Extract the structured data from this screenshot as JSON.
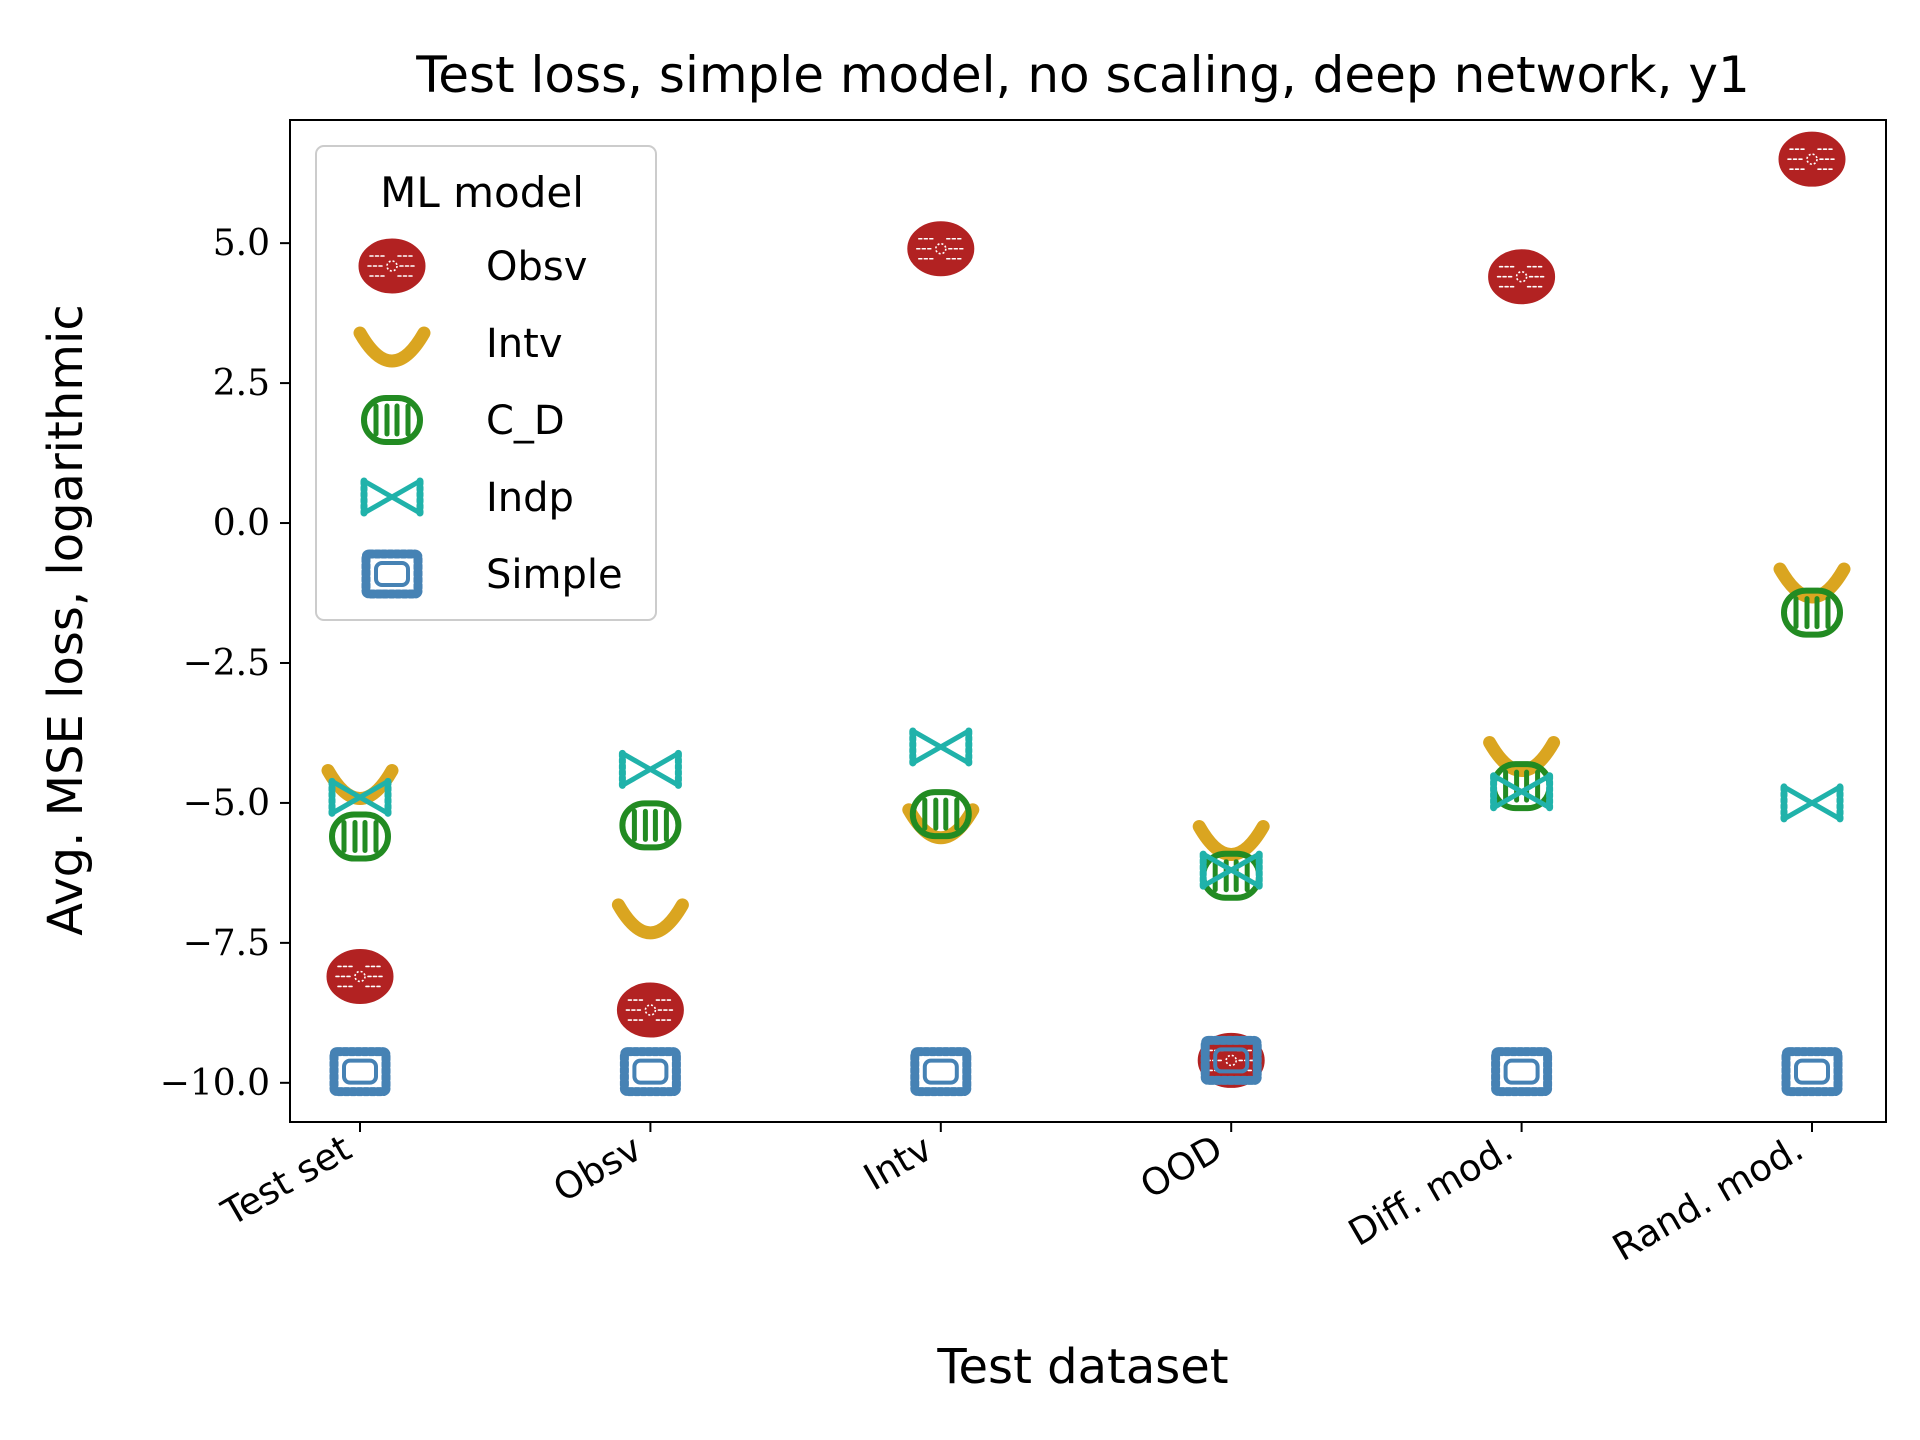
{
  "chart_data": {
    "type": "scatter",
    "title": "Test loss, simple model, no scaling, deep network, y1",
    "xlabel": "Test dataset",
    "ylabel": "Avg. MSE loss, logarithmic",
    "categories": [
      "Test set",
      "Obsv",
      "Intv",
      "OOD",
      "Diff. mod.",
      "Rand. mod."
    ],
    "ylim": [
      -10.7,
      7.2
    ],
    "yticks": [
      5.0,
      2.5,
      0.0,
      -2.5,
      -5.0,
      -7.5,
      -10.0
    ],
    "ytick_labels": [
      "5.0",
      "2.5",
      "0.0",
      "−2.5",
      "−5.0",
      "−7.5",
      "−10.0"
    ],
    "grid": false,
    "legend": {
      "title": "ML model",
      "position": "upper-left"
    },
    "series": [
      {
        "name": "Obsv",
        "color": "#b22222",
        "marker": "pasta-round-icon",
        "values": [
          -8.1,
          -8.7,
          4.9,
          -9.6,
          4.4,
          6.5
        ]
      },
      {
        "name": "Intv",
        "color": "#daa520",
        "marker": "pasta-shell-icon",
        "values": [
          -4.6,
          -7.0,
          -5.3,
          -5.6,
          -4.1,
          -1.0
        ]
      },
      {
        "name": "C_D",
        "color": "#228b22",
        "marker": "pasta-tube-icon",
        "values": [
          -5.6,
          -5.4,
          -5.2,
          -6.3,
          -4.7,
          -1.6
        ]
      },
      {
        "name": "Indp",
        "color": "#20b2aa",
        "marker": "pasta-bowtie-icon",
        "values": [
          -4.9,
          -4.4,
          -4.0,
          -6.2,
          -4.8,
          -5.0
        ]
      },
      {
        "name": "Simple",
        "color": "#4682b4",
        "marker": "pasta-ravioli-icon",
        "values": [
          -9.8,
          -9.8,
          -9.8,
          -9.6,
          -9.8,
          -9.8
        ]
      }
    ]
  }
}
